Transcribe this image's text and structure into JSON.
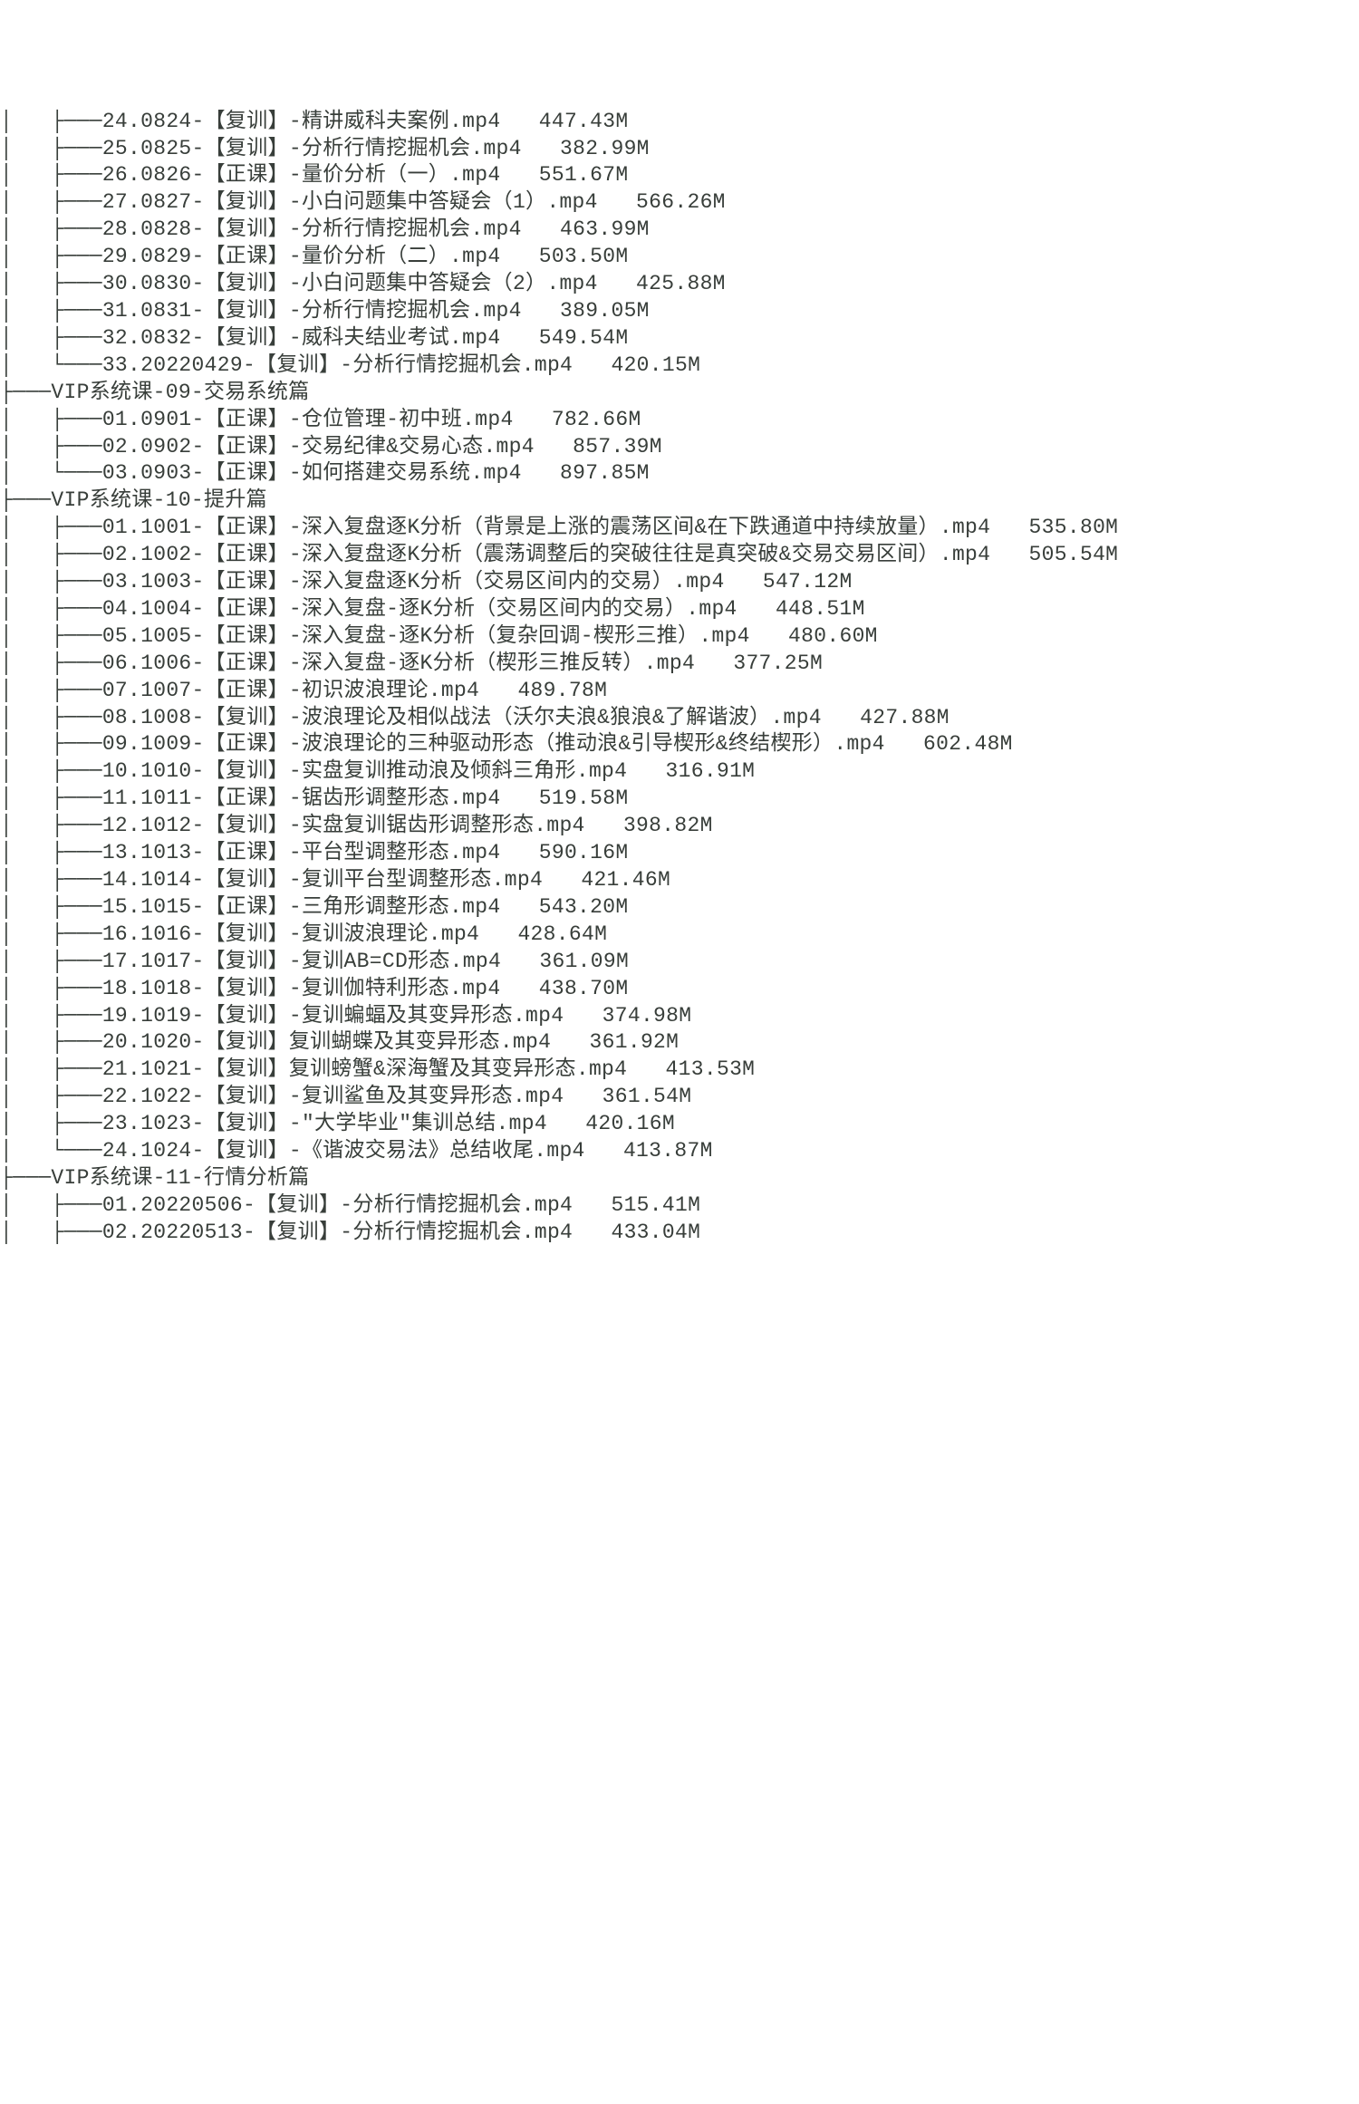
{
  "lines": [
    "│   ├───24.0824-【复训】-精讲威科夫案例.mp4   447.43M",
    "│   ├───25.0825-【复训】-分析行情挖掘机会.mp4   382.99M",
    "│   ├───26.0826-【正课】-量价分析（一）.mp4   551.67M",
    "│   ├───27.0827-【复训】-小白问题集中答疑会（1）.mp4   566.26M",
    "│   ├───28.0828-【复训】-分析行情挖掘机会.mp4   463.99M",
    "│   ├───29.0829-【正课】-量价分析（二）.mp4   503.50M",
    "│   ├───30.0830-【复训】-小白问题集中答疑会（2）.mp4   425.88M",
    "│   ├───31.0831-【复训】-分析行情挖掘机会.mp4   389.05M",
    "│   ├───32.0832-【复训】-威科夫结业考试.mp4   549.54M",
    "│   └───33.20220429-【复训】-分析行情挖掘机会.mp4   420.15M",
    "├───VIP系统课-09-交易系统篇",
    "│   ├───01.0901-【正课】-仓位管理-初中班.mp4   782.66M",
    "│   ├───02.0902-【正课】-交易纪律&交易心态.mp4   857.39M",
    "│   └───03.0903-【正课】-如何搭建交易系统.mp4   897.85M",
    "├───VIP系统课-10-提升篇",
    "│   ├───01.1001-【正课】-深入复盘逐K分析（背景是上涨的震荡区间&在下跌通道中持续放量）.mp4   535.80M",
    "│   ├───02.1002-【正课】-深入复盘逐K分析（震荡调整后的突破往往是真突破&交易交易区间）.mp4   505.54M",
    "│   ├───03.1003-【正课】-深入复盘逐K分析（交易区间内的交易）.mp4   547.12M",
    "│   ├───04.1004-【正课】-深入复盘-逐K分析（交易区间内的交易）.mp4   448.51M",
    "│   ├───05.1005-【正课】-深入复盘-逐K分析（复杂回调-楔形三推）.mp4   480.60M",
    "│   ├───06.1006-【正课】-深入复盘-逐K分析（楔形三推反转）.mp4   377.25M",
    "│   ├───07.1007-【正课】-初识波浪理论.mp4   489.78M",
    "│   ├───08.1008-【复训】-波浪理论及相似战法（沃尔夫浪&狼浪&了解谐波）.mp4   427.88M",
    "│   ├───09.1009-【正课】-波浪理论的三种驱动形态（推动浪&引导楔形&终结楔形）.mp4   602.48M",
    "│   ├───10.1010-【复训】-实盘复训推动浪及倾斜三角形.mp4   316.91M",
    "│   ├───11.1011-【正课】-锯齿形调整形态.mp4   519.58M",
    "│   ├───12.1012-【复训】-实盘复训锯齿形调整形态.mp4   398.82M",
    "│   ├───13.1013-【正课】-平台型调整形态.mp4   590.16M",
    "│   ├───14.1014-【复训】-复训平台型调整形态.mp4   421.46M",
    "│   ├───15.1015-【正课】-三角形调整形态.mp4   543.20M",
    "│   ├───16.1016-【复训】-复训波浪理论.mp4   428.64M",
    "│   ├───17.1017-【复训】-复训AB=CD形态.mp4   361.09M",
    "│   ├───18.1018-【复训】-复训伽特利形态.mp4   438.70M",
    "│   ├───19.1019-【复训】-复训蝙蝠及其变异形态.mp4   374.98M",
    "│   ├───20.1020-【复训】复训蝴蝶及其变异形态.mp4   361.92M",
    "│   ├───21.1021-【复训】复训螃蟹&深海蟹及其变异形态.mp4   413.53M",
    "│   ├───22.1022-【复训】-复训鲨鱼及其变异形态.mp4   361.54M",
    "│   ├───23.1023-【复训】-\"大学毕业\"集训总结.mp4   420.16M",
    "│   └───24.1024-【复训】-《谐波交易法》总结收尾.mp4   413.87M",
    "├───VIP系统课-11-行情分析篇",
    "│   ├───01.20220506-【复训】-分析行情挖掘机会.mp4   515.41M",
    "│   ├───02.20220513-【复训】-分析行情挖掘机会.mp4   433.04M"
  ]
}
